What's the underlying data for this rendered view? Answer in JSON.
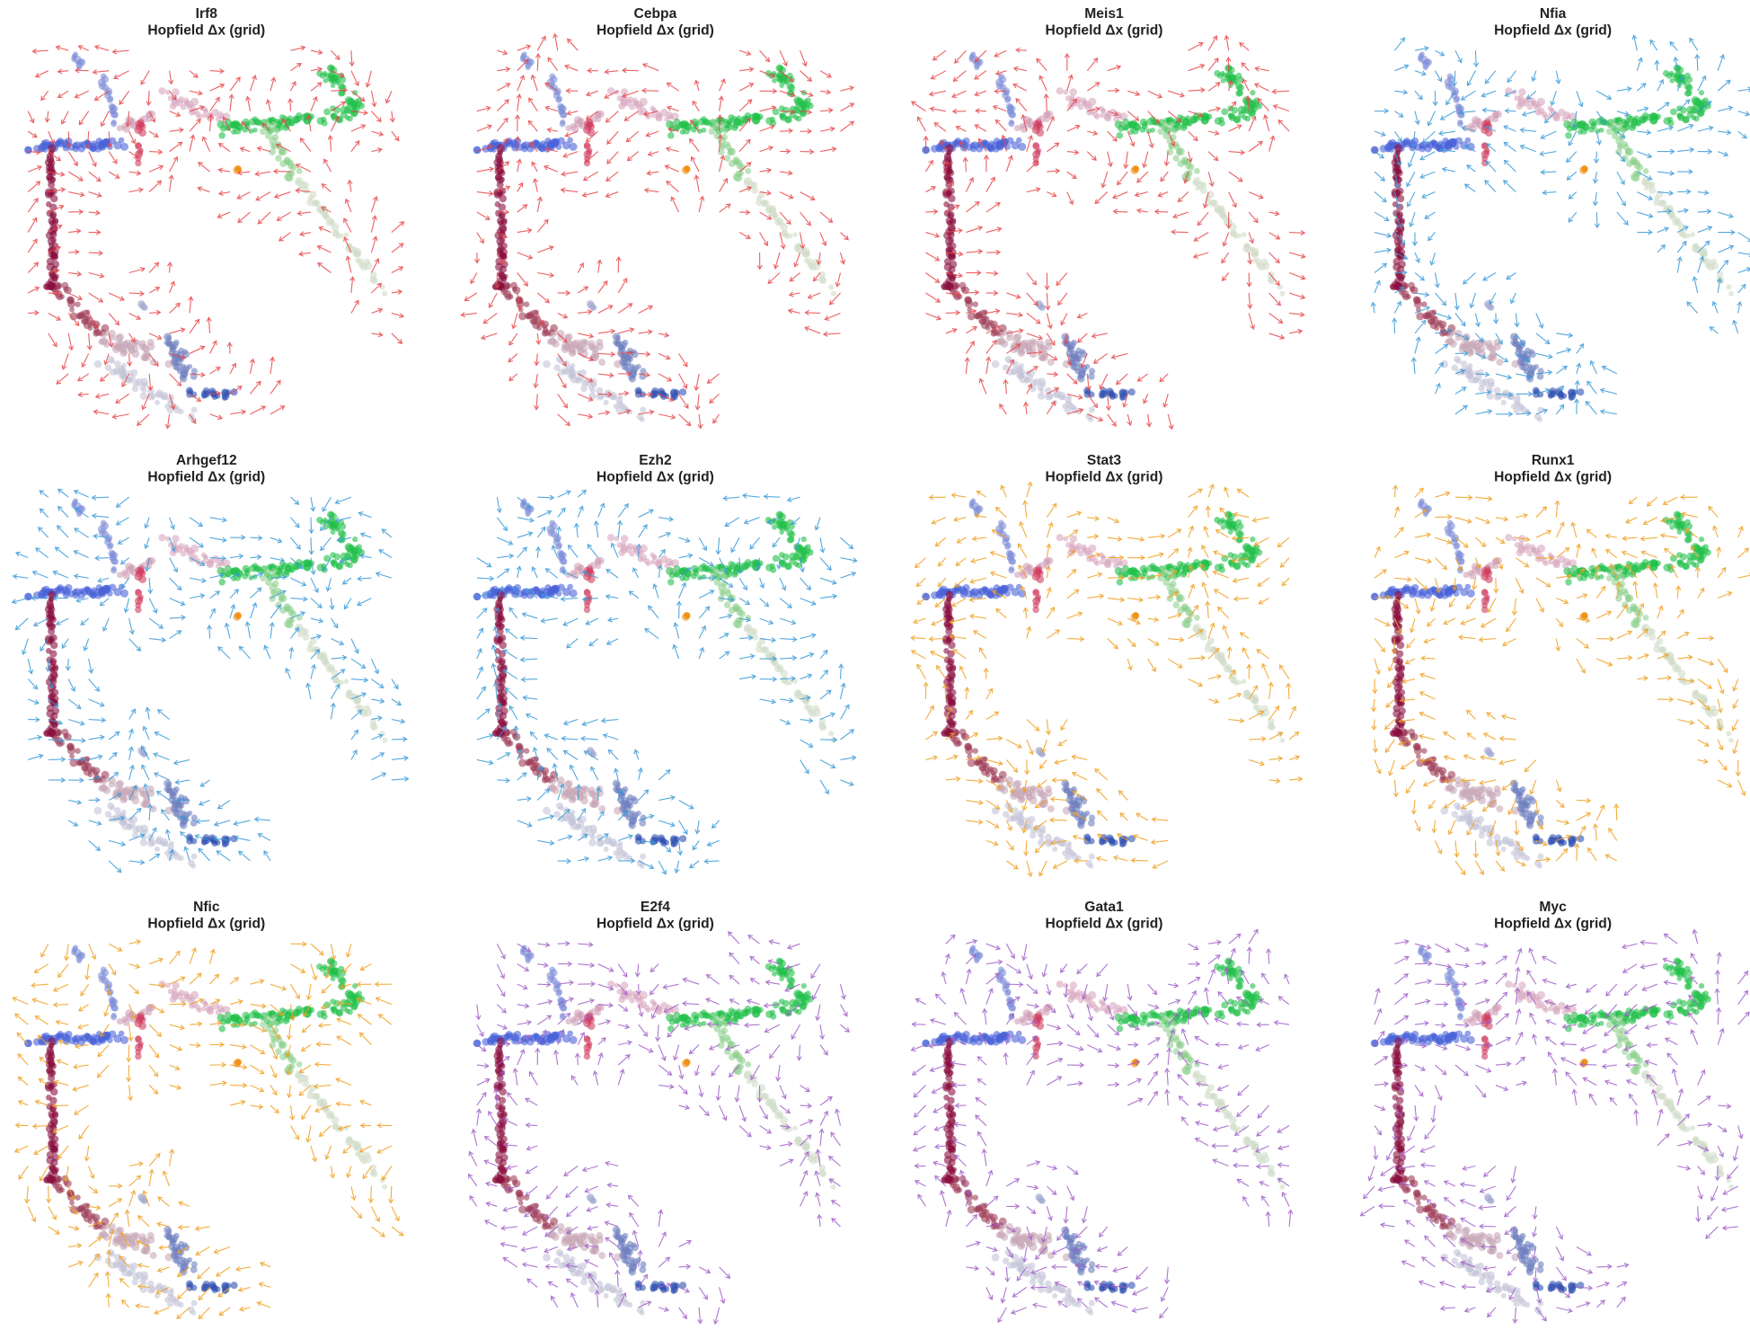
{
  "chart_data": [
    {
      "type": "quiver",
      "title": "Irf8",
      "subtitle": "Hopfield Δx (grid)",
      "color": "#e8474a"
    },
    {
      "type": "quiver",
      "title": "Cebpa",
      "subtitle": "Hopfield Δx (grid)",
      "color": "#e8474a"
    },
    {
      "type": "quiver",
      "title": "Meis1",
      "subtitle": "Hopfield Δx (grid)",
      "color": "#e8474a"
    },
    {
      "type": "quiver",
      "title": "Nfia",
      "subtitle": "Hopfield Δx (grid)",
      "color": "#3a9ad8"
    },
    {
      "type": "quiver",
      "title": "Arhgef12",
      "subtitle": "Hopfield Δx (grid)",
      "color": "#3a9ad8"
    },
    {
      "type": "quiver",
      "title": "Ezh2",
      "subtitle": "Hopfield Δx (grid)",
      "color": "#3a9ad8"
    },
    {
      "type": "quiver",
      "title": "Stat3",
      "subtitle": "Hopfield Δx (grid)",
      "color": "#f0a020"
    },
    {
      "type": "quiver",
      "title": "Runx1",
      "subtitle": "Hopfield Δx (grid)",
      "color": "#f0a020"
    },
    {
      "type": "quiver",
      "title": "Nfic",
      "subtitle": "Hopfield Δx (grid)",
      "color": "#f0a020"
    },
    {
      "type": "quiver",
      "title": "E2f4",
      "subtitle": "Hopfield Δx (grid)",
      "color": "#a060c8"
    },
    {
      "type": "quiver",
      "title": "Gata1",
      "subtitle": "Hopfield Δx (grid)",
      "color": "#a060c8"
    },
    {
      "type": "quiver",
      "title": "Myc",
      "subtitle": "Hopfield Δx (grid)",
      "color": "#a060c8"
    }
  ]
}
